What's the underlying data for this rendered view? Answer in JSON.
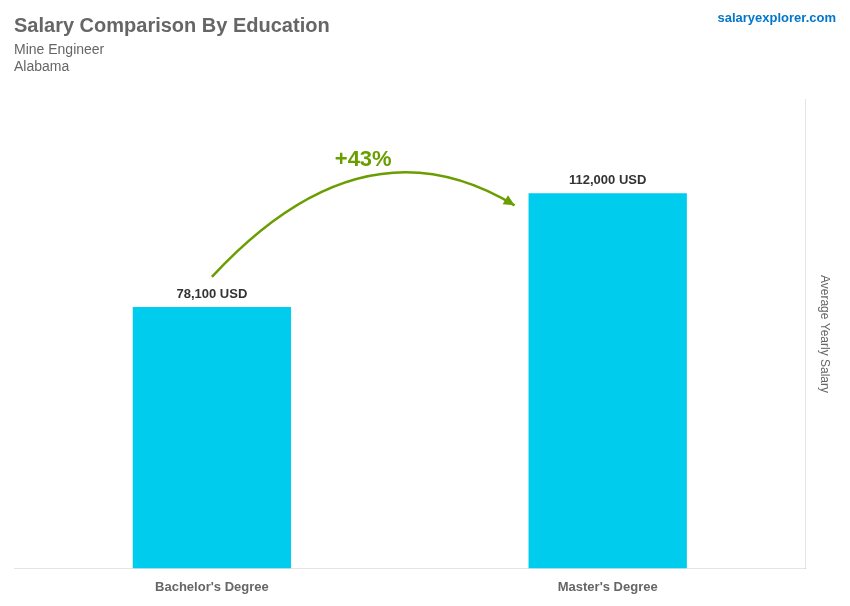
{
  "chart_data": {
    "type": "bar",
    "title": "Salary Comparison By Education",
    "subtitle": "Mine Engineer",
    "annotations": [
      "Alabama",
      "salaryexplorer.com",
      "+43%"
    ],
    "ylabel": "Average Yearly Salary",
    "categories": [
      "Bachelor's Degree",
      "Master's Degree"
    ],
    "values": [
      78100,
      112000
    ],
    "value_labels": [
      "78,100 USD",
      "112,000 USD"
    ],
    "data_labels": true,
    "color": "#00CCEE",
    "ylim": [
      0,
      140000
    ],
    "tick_labels": "x",
    "grid": false
  }
}
